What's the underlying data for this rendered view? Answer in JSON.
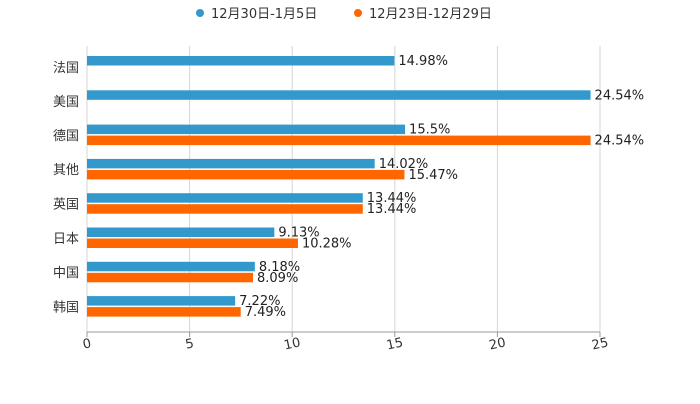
{
  "chart_data": {
    "type": "bar",
    "orientation": "horizontal",
    "categories": [
      "法国",
      "美国",
      "德国",
      "其他",
      "英国",
      "日本",
      "中国",
      "韩国"
    ],
    "series": [
      {
        "name": "12月30日-1月5日",
        "color": "#3399cc",
        "values": [
          14.98,
          24.54,
          15.5,
          14.02,
          13.44,
          9.13,
          8.18,
          7.22
        ],
        "labels": [
          "14.98%",
          "24.54%",
          "15.5%",
          "14.02%",
          "13.44%",
          "9.13%",
          "8.18%",
          "7.22%"
        ]
      },
      {
        "name": "12月23日-12月29日",
        "color": "#ff6600",
        "values": [
          null,
          null,
          24.54,
          15.47,
          13.44,
          10.28,
          8.09,
          7.49
        ],
        "labels": [
          null,
          null,
          "24.54%",
          "15.47%",
          "13.44%",
          "10.28%",
          "8.09%",
          "7.49%"
        ]
      }
    ],
    "xlim": [
      0,
      25
    ],
    "xticks": [
      "0",
      "5",
      "10",
      "15",
      "20",
      "25"
    ],
    "grid": true,
    "legend": "top-center"
  }
}
